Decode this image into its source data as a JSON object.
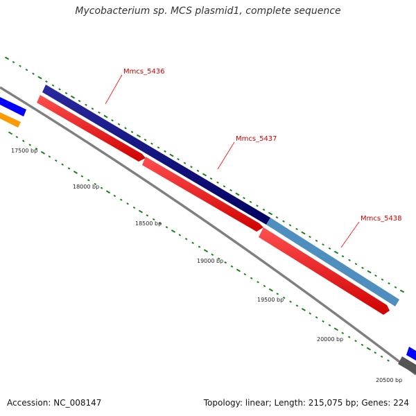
{
  "title": "Mycobacterium sp. MCS plasmid1, complete sequence",
  "footer": {
    "accession": "Accession: NC_008147",
    "summary": "Topology: linear; Length: 215,075 bp; Genes: 224"
  },
  "colors": {
    "backbone": "#808080",
    "forward_gene": "#000080",
    "reverse_gene": "#ff0000",
    "highlight_gene": "#4f8fc0",
    "label": "#cc0000",
    "tick_major": "#1a7f1a",
    "tick_minor": "#1a7f1a"
  },
  "scale_labels": [
    "17500 bp",
    "18000 bp",
    "18500 bp",
    "19000 bp",
    "19500 bp",
    "20000 bp",
    "20500 bp"
  ],
  "genes": [
    {
      "name": "Mmcs_5436"
    },
    {
      "name": "Mmcs_5437"
    },
    {
      "name": "Mmcs_5438"
    }
  ]
}
